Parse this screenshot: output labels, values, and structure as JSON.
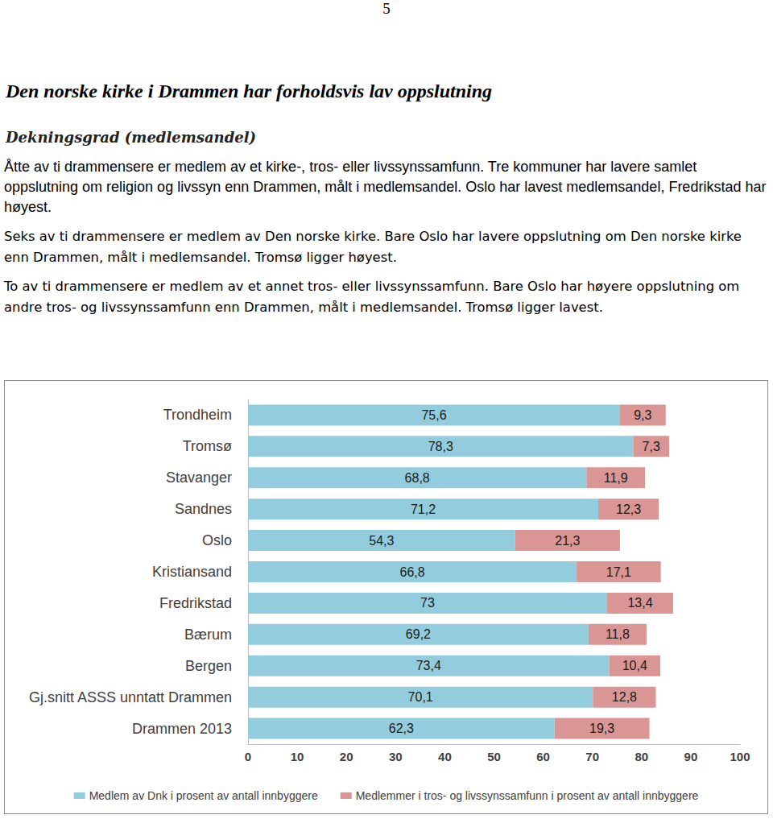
{
  "page_number": 5,
  "heading": "Den norske kirke i Drammen har forholdsvis lav oppslutning",
  "subheading": "Dekningsgrad (medlemsandel)",
  "paragraphs": [
    "Åtte av ti drammensere er medlem av et kirke-, tros- eller livssynssamfunn. Tre kommuner har lavere samlet oppslutning om religion og livssyn enn Drammen, målt i medlemsandel. Oslo har lavest medlemsandel, Fredrikstad har høyest.",
    "Seks av ti drammensere er medlem av Den norske kirke. Bare Oslo har lavere oppslutning om Den norske kirke enn Drammen, målt i medlemsandel. Tromsø ligger høyest.",
    "To av ti drammensere er medlem av et annet tros- eller livssynssamfunn. Bare Oslo har høyere oppslutning om andre tros- og livssynssamfunn enn Drammen, målt i medlemsandel. Tromsø ligger lavest."
  ],
  "chart_data": {
    "type": "bar",
    "orientation": "horizontal",
    "stacked": true,
    "data_labels": true,
    "grid": false,
    "legend": "bottom",
    "categories": [
      "Trondheim",
      "Tromsø",
      "Stavanger",
      "Sandnes",
      "Oslo",
      "Kristiansand",
      "Fredrikstad",
      "Bærum",
      "Bergen",
      "Gj.snitt ASSS unntatt Drammen",
      "Drammen 2013"
    ],
    "series": [
      {
        "name": "Medlem av Dnk i prosent av antall innbyggere",
        "color": "#93cddd",
        "values": [
          75.6,
          78.3,
          68.8,
          71.2,
          54.3,
          66.8,
          73,
          69.2,
          73.4,
          70.1,
          62.3
        ],
        "value_labels": [
          "75,6",
          "78,3",
          "68,8",
          "71,2",
          "54,3",
          "66,8",
          "73",
          "69,2",
          "73,4",
          "70,1",
          "62,3"
        ]
      },
      {
        "name": "Medlemmer i tros- og livssynssamfunn i prosent av antall innbyggere",
        "color": "#d99694",
        "values": [
          9.3,
          7.3,
          11.9,
          12.3,
          21.3,
          17.1,
          13.4,
          11.8,
          10.4,
          12.8,
          19.3
        ],
        "value_labels": [
          "9,3",
          "7,3",
          "11,9",
          "12,3",
          "21,3",
          "17,1",
          "13,4",
          "11,8",
          "10,4",
          "12,8",
          "19,3"
        ]
      }
    ],
    "xlim": [
      0,
      100
    ],
    "xticks": [
      0,
      10,
      20,
      30,
      40,
      50,
      60,
      70,
      80,
      90,
      100
    ]
  }
}
